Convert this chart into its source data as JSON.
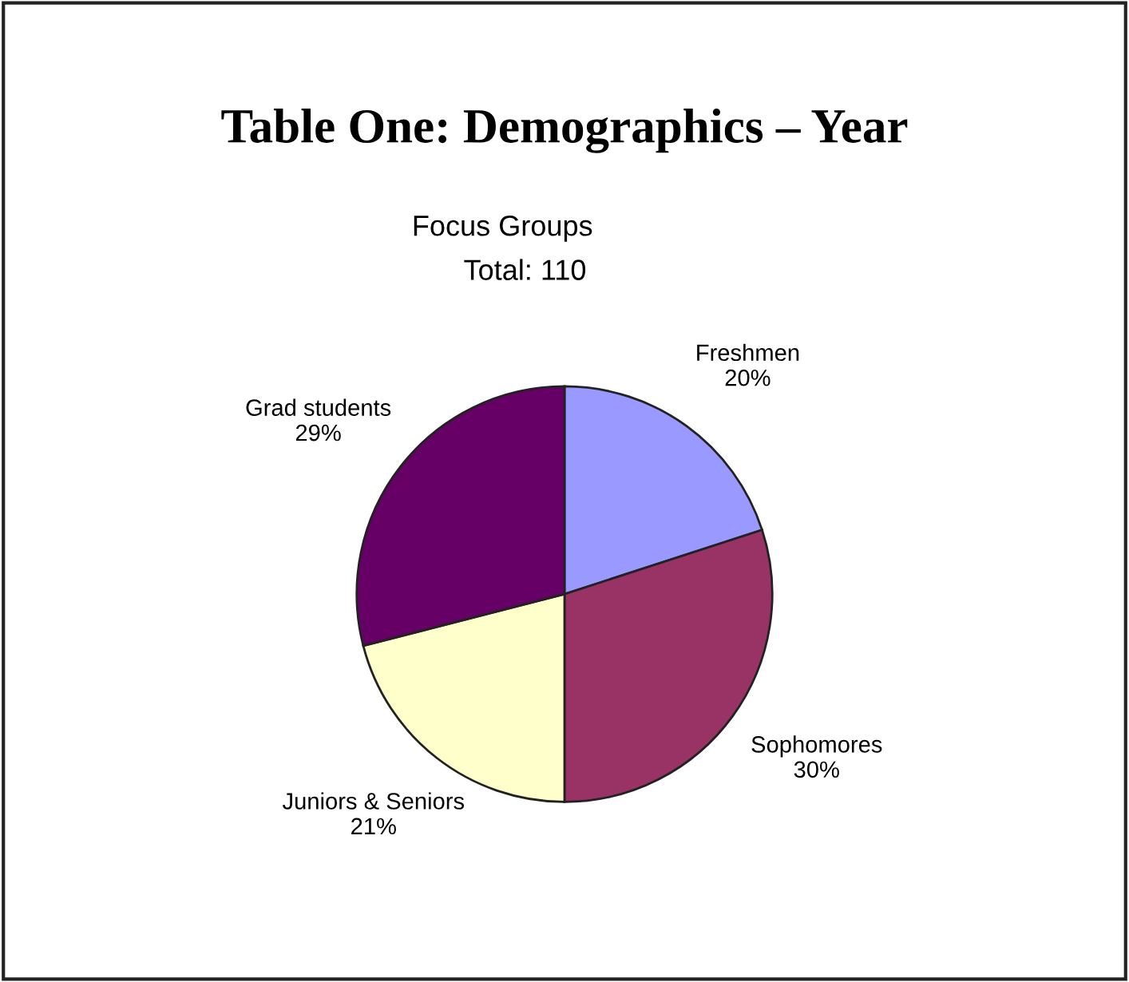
{
  "chart_data": {
    "type": "pie",
    "title": "Table One: Demographics – Year",
    "subtitle": "Focus Groups",
    "annotations": [
      "Total: 110"
    ],
    "categories": [
      "Freshmen",
      "Sophomores",
      "Juniors & Seniors",
      "Grad students"
    ],
    "values": [
      20,
      30,
      21,
      29
    ],
    "value_labels": [
      "20%",
      "30%",
      "21%",
      "29%"
    ],
    "colors": [
      "#9999ff",
      "#993366",
      "#ffffcc",
      "#660066"
    ],
    "legend": false
  }
}
